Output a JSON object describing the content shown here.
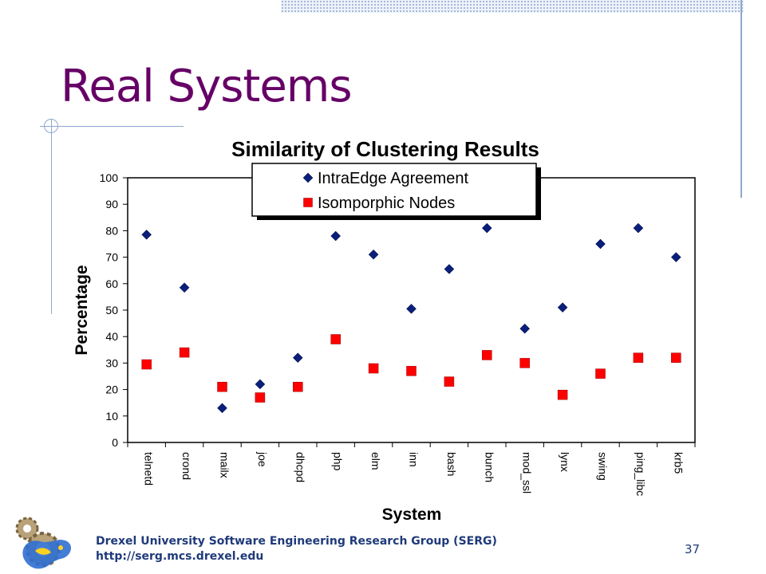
{
  "slide": {
    "title": "Real Systems",
    "footer_line1": "Drexel University Software Engineering Research Group (SERG)",
    "footer_line2": "http://serg.mcs.drexel.edu",
    "page_number": "37"
  },
  "chart_data": {
    "type": "scatter",
    "title": "Similarity of Clustering Results",
    "xlabel": "System",
    "ylabel": "Percentage",
    "categories": [
      "telnetd",
      "crond",
      "mailx",
      "joe",
      "dhcpd",
      "php",
      "elm",
      "inn",
      "bash",
      "bunch",
      "mod_ssl",
      "lynx",
      "swing",
      "ping_libc",
      "krb5"
    ],
    "ylim": [
      0,
      100
    ],
    "yticks": [
      0,
      10,
      20,
      30,
      40,
      50,
      60,
      70,
      80,
      90,
      100
    ],
    "grid": false,
    "legend_position": "top-center",
    "series": [
      {
        "name": "IntraEdge Agreement",
        "marker": "diamond",
        "color": "#0a1f7a",
        "values": [
          78.5,
          58.5,
          13,
          22,
          32,
          78,
          71,
          50.5,
          65.5,
          81,
          43,
          51,
          75,
          81,
          70
        ]
      },
      {
        "name": "Isomporphic Nodes",
        "marker": "square",
        "color": "#ff0000",
        "values": [
          29.5,
          34,
          21,
          17,
          21,
          39,
          28,
          27,
          23,
          33,
          30,
          18,
          26,
          32,
          32
        ]
      }
    ]
  }
}
